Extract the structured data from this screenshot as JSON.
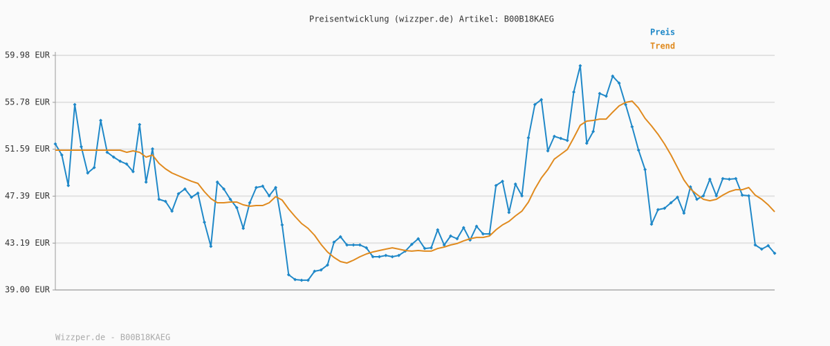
{
  "chart_data": {
    "type": "line",
    "title": "Preisentwicklung (wizzper.de) Artikel: B00B18KAEG",
    "footer": "Wizzper.de - B00B18KAEG",
    "ylim": [
      39.0,
      59.98
    ],
    "yticks": [
      {
        "value": 39.0,
        "label": "39.00 EUR"
      },
      {
        "value": 43.19,
        "label": "43.19 EUR"
      },
      {
        "value": 47.39,
        "label": "47.39 EUR"
      },
      {
        "value": 51.59,
        "label": "51.59 EUR"
      },
      {
        "value": 55.78,
        "label": "55.78 EUR"
      },
      {
        "value": 59.98,
        "label": "59.98 EUR"
      }
    ],
    "grid": true,
    "legend": "top-right",
    "series": [
      {
        "name": "Preis",
        "color": "#1f88c8",
        "markers": true,
        "values": [
          52.06,
          51.07,
          48.34,
          55.58,
          51.81,
          49.46,
          49.95,
          54.16,
          51.31,
          50.88,
          50.51,
          50.26,
          49.58,
          53.79,
          48.65,
          51.62,
          47.11,
          46.92,
          46.05,
          47.6,
          48.03,
          47.29,
          47.66,
          45.06,
          42.9,
          48.65,
          48.03,
          47.11,
          46.36,
          44.51,
          46.8,
          48.16,
          48.28,
          47.42,
          48.16,
          44.82,
          40.36,
          39.93,
          39.87,
          39.87,
          40.67,
          40.79,
          41.23,
          43.27,
          43.76,
          43.02,
          43.02,
          43.02,
          42.77,
          41.97,
          41.97,
          42.09,
          41.97,
          42.09,
          42.47,
          43.08,
          43.58,
          42.71,
          42.77,
          44.38,
          43.02,
          43.83,
          43.58,
          44.57,
          43.46,
          44.69,
          44.01,
          44.01,
          48.34,
          48.72,
          45.93,
          48.47,
          47.42,
          52.61,
          55.58,
          56.02,
          51.44,
          52.74,
          52.55,
          52.37,
          56.7,
          59.05,
          52.12,
          53.17,
          56.57,
          56.33,
          58.12,
          57.5,
          55.58,
          53.6,
          51.5,
          49.77,
          44.88,
          46.18,
          46.3,
          46.8,
          47.29,
          45.87,
          48.22,
          47.11,
          47.42,
          48.9,
          47.42,
          48.96,
          48.9,
          48.96,
          47.48,
          47.42,
          43.02,
          42.65,
          42.96,
          42.28
        ]
      },
      {
        "name": "Trend",
        "color": "#e08a1e",
        "markers": false,
        "values": [
          51.5,
          51.5,
          51.5,
          51.5,
          51.5,
          51.5,
          51.5,
          51.5,
          51.5,
          51.5,
          51.5,
          51.31,
          51.44,
          51.31,
          50.88,
          51.07,
          50.32,
          49.83,
          49.46,
          49.21,
          48.96,
          48.72,
          48.53,
          47.79,
          47.17,
          46.8,
          46.8,
          46.86,
          46.86,
          46.61,
          46.49,
          46.55,
          46.55,
          46.8,
          47.35,
          47.04,
          46.24,
          45.56,
          44.94,
          44.51,
          43.89,
          43.08,
          42.4,
          41.91,
          41.54,
          41.41,
          41.66,
          41.97,
          42.22,
          42.4,
          42.53,
          42.65,
          42.77,
          42.65,
          42.53,
          42.47,
          42.53,
          42.47,
          42.47,
          42.71,
          42.84,
          43.02,
          43.15,
          43.39,
          43.58,
          43.7,
          43.7,
          43.83,
          44.38,
          44.82,
          45.13,
          45.62,
          46.05,
          46.86,
          48.03,
          49.02,
          49.77,
          50.7,
          51.13,
          51.56,
          52.61,
          53.73,
          54.1,
          54.16,
          54.28,
          54.28,
          54.9,
          55.46,
          55.77,
          55.89,
          55.27,
          54.35,
          53.67,
          52.92,
          52.06,
          51.07,
          49.95,
          48.84,
          48.03,
          47.54,
          47.11,
          46.98,
          47.11,
          47.48,
          47.79,
          47.97,
          47.97,
          48.16,
          47.48,
          47.11,
          46.61,
          45.99
        ]
      }
    ]
  }
}
